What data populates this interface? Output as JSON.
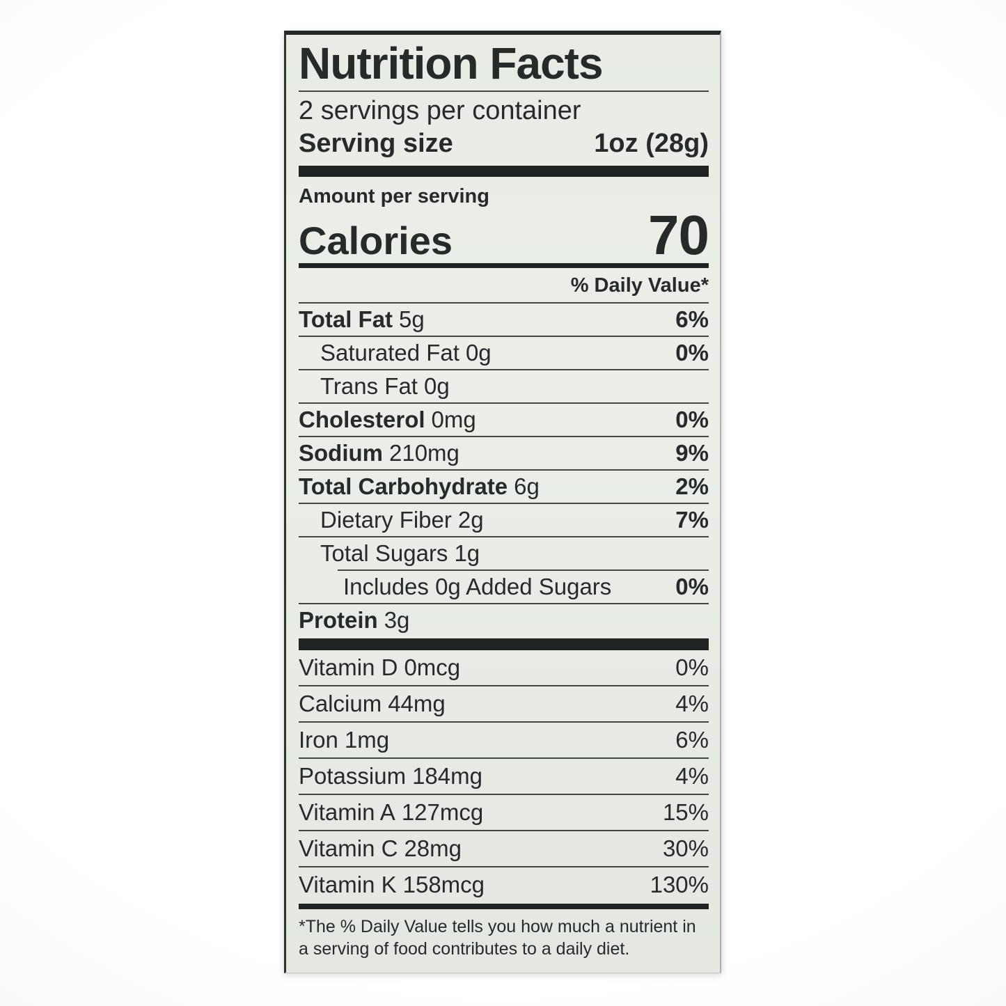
{
  "nutrition": {
    "title": "Nutrition Facts",
    "servings_per_container": "2 servings per container",
    "serving_size": {
      "label": "Serving size",
      "value": "1oz (28g)"
    },
    "amount_per_serving": "Amount per serving",
    "calories": {
      "label": "Calories",
      "value": "70"
    },
    "dv_header": "% Daily Value*",
    "rows": [
      {
        "name": "Total Fat",
        "amount": "5g",
        "dv": "6%"
      },
      {
        "name": "Saturated Fat",
        "amount": "0g",
        "dv": "0%"
      },
      {
        "name": "Trans Fat",
        "amount": "0g",
        "dv": ""
      },
      {
        "name": "Cholesterol",
        "amount": "0mg",
        "dv": "0%"
      },
      {
        "name": "Sodium",
        "amount": "210mg",
        "dv": "9%"
      },
      {
        "name": "Total Carbohydrate",
        "amount": "6g",
        "dv": "2%"
      },
      {
        "name": "Dietary Fiber",
        "amount": "2g",
        "dv": "7%"
      },
      {
        "name": "Total Sugars",
        "amount": "1g",
        "dv": ""
      },
      {
        "name": "Includes 0g Added Sugars",
        "amount": "",
        "dv": "0%"
      },
      {
        "name": "Protein",
        "amount": "3g",
        "dv": ""
      }
    ],
    "vitamins": [
      {
        "name": "Vitamin D",
        "amount": "0mcg",
        "dv": "0%"
      },
      {
        "name": "Calcium",
        "amount": "44mg",
        "dv": "4%"
      },
      {
        "name": "Iron",
        "amount": "1mg",
        "dv": "6%"
      },
      {
        "name": "Potassium",
        "amount": "184mg",
        "dv": "4%"
      },
      {
        "name": "Vitamin A",
        "amount": "127mcg",
        "dv": "15%"
      },
      {
        "name": "Vitamin C",
        "amount": "28mg",
        "dv": "30%"
      },
      {
        "name": "Vitamin K",
        "amount": "158mcg",
        "dv": "130%"
      }
    ],
    "footnote": "*The % Daily Value tells you how much a nutrient in a serving of food contributes to a daily diet.",
    "colors": {
      "label_bg": "#e9ece7",
      "ink": "#262b29",
      "bar": "#1f2321"
    }
  }
}
